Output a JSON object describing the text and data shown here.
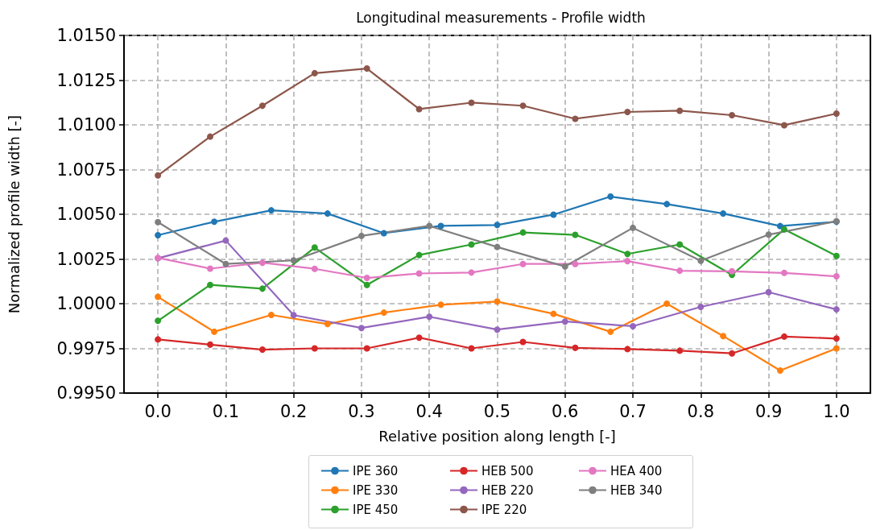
{
  "chart_data": {
    "type": "line",
    "title": "Longitudinal measurements - Profile width",
    "xlabel": "Relative position along length [-]",
    "ylabel": "Normalized profile width [-]",
    "xlim": [
      -0.05,
      1.05
    ],
    "xticks": [
      {
        "value": 0,
        "label": "0.0"
      },
      {
        "value": 0.1,
        "label": "0.1"
      },
      {
        "value": 0.2,
        "label": "0.2"
      },
      {
        "value": 0.3,
        "label": "0.3"
      },
      {
        "value": 0.4,
        "label": "0.4"
      },
      {
        "value": 0.5,
        "label": "0.5"
      },
      {
        "value": 0.6,
        "label": "0.6"
      },
      {
        "value": 0.7,
        "label": "0.7"
      },
      {
        "value": 0.8,
        "label": "0.8"
      },
      {
        "value": 0.9,
        "label": "0.9"
      },
      {
        "value": 1,
        "label": "1.0"
      }
    ],
    "ylim": [
      0.995,
      1.015
    ],
    "yticks": [
      {
        "value": 0.995,
        "label": "0.9950"
      },
      {
        "value": 0.9975,
        "label": "0.9975"
      },
      {
        "value": 1,
        "label": "1.0000"
      },
      {
        "value": 1.0025,
        "label": "1.0025"
      },
      {
        "value": 1.005,
        "label": "1.0050"
      },
      {
        "value": 1.0075,
        "label": "1.0075"
      },
      {
        "value": 1.01,
        "label": "1.0100"
      },
      {
        "value": 1.0125,
        "label": "1.0125"
      },
      {
        "value": 1.015,
        "label": "1.0150"
      }
    ],
    "grid": true,
    "legend": "bottom",
    "marker": "circle",
    "line_style": "solid",
    "series": [
      {
        "name": "IPE 360",
        "color": "#1f77b4",
        "x": [
          0,
          0.083,
          0.167,
          0.25,
          0.333,
          0.417,
          0.5,
          0.583,
          0.667,
          0.75,
          0.833,
          0.917,
          1
        ],
        "values": [
          1.00383,
          1.00458,
          1.00522,
          1.00504,
          1.00394,
          1.00435,
          1.0044,
          1.00498,
          1.00599,
          1.00557,
          1.00504,
          1.00434,
          1.00458
        ]
      },
      {
        "name": "IPE 330",
        "color": "#ff7f0e",
        "x": [
          0,
          0.083,
          0.167,
          0.25,
          0.333,
          0.417,
          0.5,
          0.583,
          0.667,
          0.75,
          0.833,
          0.917,
          1
        ],
        "values": [
          1.00038,
          0.99843,
          0.99937,
          0.99886,
          0.9995,
          0.99994,
          1.00012,
          0.99943,
          0.99843,
          1.0,
          0.99819,
          0.99626,
          0.9975
        ]
      },
      {
        "name": "IPE 450",
        "color": "#2ca02c",
        "x": [
          0,
          0.077,
          0.154,
          0.231,
          0.308,
          0.385,
          0.462,
          0.538,
          0.615,
          0.692,
          0.769,
          0.846,
          0.923,
          1
        ],
        "values": [
          0.99904,
          1.00105,
          1.00084,
          1.00314,
          1.00105,
          1.00272,
          1.00331,
          1.00398,
          1.00385,
          1.00278,
          1.00331,
          1.00161,
          1.00416,
          1.00267
        ]
      },
      {
        "name": "HEB 500",
        "color": "#d62728",
        "x": [
          0,
          0.077,
          0.154,
          0.231,
          0.308,
          0.385,
          0.462,
          0.538,
          0.615,
          0.692,
          0.769,
          0.846,
          0.923,
          1
        ],
        "values": [
          0.998,
          0.99771,
          0.99743,
          0.9975,
          0.9975,
          0.9981,
          0.9975,
          0.99786,
          0.99753,
          0.99746,
          0.99737,
          0.99722,
          0.99816,
          0.99805
        ]
      },
      {
        "name": "HEB 220",
        "color": "#9467bd",
        "x": [
          0,
          0.1,
          0.2,
          0.3,
          0.4,
          0.5,
          0.6,
          0.7,
          0.8,
          0.9,
          1
        ],
        "values": [
          1.00254,
          1.00353,
          0.99936,
          0.99864,
          0.99927,
          0.99855,
          0.999,
          0.99874,
          0.99982,
          1.00064,
          0.99968
        ]
      },
      {
        "name": "IPE 220",
        "color": "#8c564b",
        "x": [
          0,
          0.077,
          0.154,
          0.231,
          0.308,
          0.385,
          0.462,
          0.538,
          0.615,
          0.692,
          0.769,
          0.846,
          0.923,
          1
        ],
        "values": [
          1.00717,
          1.00934,
          1.01107,
          1.01289,
          1.01315,
          1.01088,
          1.01124,
          1.01107,
          1.01034,
          1.01072,
          1.01079,
          1.01054,
          1.00998,
          1.01063
        ]
      },
      {
        "name": "HEA 400",
        "color": "#e377c2",
        "x": [
          0,
          0.077,
          0.154,
          0.231,
          0.308,
          0.385,
          0.462,
          0.538,
          0.615,
          0.692,
          0.769,
          0.846,
          0.923,
          1
        ],
        "values": [
          1.00256,
          1.00196,
          1.00229,
          1.00195,
          1.00144,
          1.00169,
          1.00174,
          1.00222,
          1.00222,
          1.00238,
          1.00184,
          1.00181,
          1.00172,
          1.00153
        ]
      },
      {
        "name": "HEB 340",
        "color": "#7f7f7f",
        "x": [
          0,
          0.1,
          0.2,
          0.3,
          0.4,
          0.5,
          0.6,
          0.7,
          0.8,
          0.9,
          1
        ],
        "values": [
          1.00456,
          1.00222,
          1.00242,
          1.00379,
          1.00435,
          1.00317,
          1.00208,
          1.00424,
          1.0024,
          1.00386,
          1.00461
        ]
      }
    ]
  }
}
